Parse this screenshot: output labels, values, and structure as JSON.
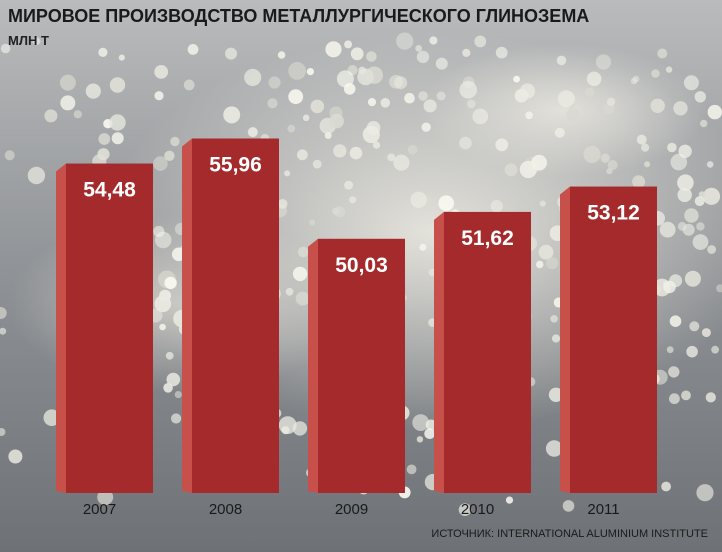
{
  "chart_data": {
    "type": "bar",
    "title": "МИРОВОЕ ПРОИЗВОДСТВО МЕТАЛЛУРГИЧЕСКОГО ГЛИНОЗЕМА",
    "ylabel": "МЛН Т",
    "xlabel": "",
    "categories": [
      "2007",
      "2008",
      "2009",
      "2010",
      "2011"
    ],
    "values": [
      54.48,
      55.96,
      50.03,
      51.62,
      53.12
    ],
    "value_labels": [
      "54,48",
      "55,96",
      "50,03",
      "51,62",
      "53,12"
    ],
    "ylim": [
      35,
      58
    ],
    "grid": false,
    "legend": "none",
    "source": "ИСТОЧНИК: INTERNATIONAL ALUMINIUM INSTITUTE",
    "colors": {
      "bar_front": "#a42a2c",
      "bar_side": "#c8504a",
      "bar_text": "#ffffff",
      "axis_text": "#1a1a1a"
    }
  }
}
